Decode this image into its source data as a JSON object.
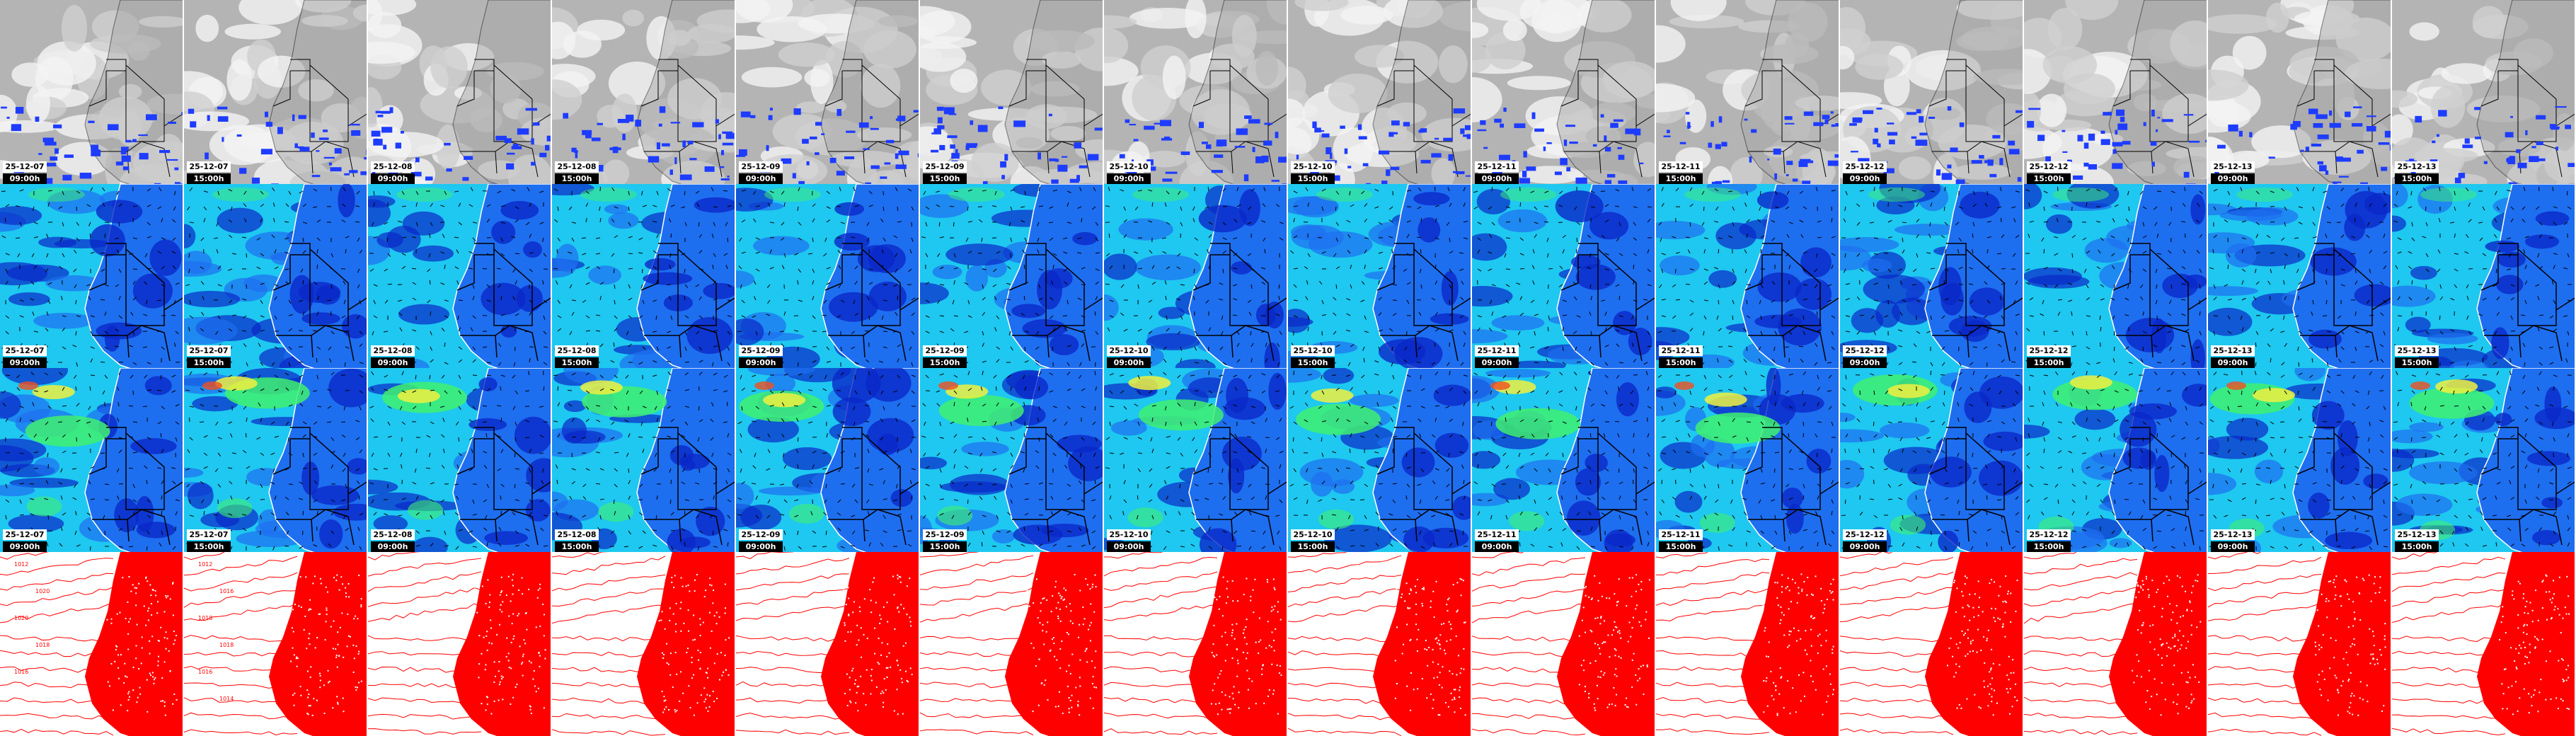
{
  "panels": [
    {
      "name": "satellite-ir-precip",
      "labels": true
    },
    {
      "name": "wind-speed-low",
      "labels": true
    },
    {
      "name": "wind-speed-high",
      "labels": true
    },
    {
      "name": "pressure-isobars",
      "labels": false
    }
  ],
  "frames": [
    {
      "date": "25-12-07",
      "time": "09:00h",
      "isobars": [
        "1012",
        "1020",
        "1020",
        "1018",
        "1016"
      ]
    },
    {
      "date": "25-12-07",
      "time": "15:00h",
      "isobars": [
        "1012",
        "1016",
        "1018",
        "1018",
        "1016",
        "1014"
      ]
    },
    {
      "date": "25-12-08",
      "time": "09:00h"
    },
    {
      "date": "25-12-08",
      "time": "15:00h"
    },
    {
      "date": "25-12-09",
      "time": "09:00h"
    },
    {
      "date": "25-12-09",
      "time": "15:00h"
    },
    {
      "date": "25-12-10",
      "time": "09:00h"
    },
    {
      "date": "25-12-10",
      "time": "15:00h"
    },
    {
      "date": "25-12-11",
      "time": "09:00h"
    },
    {
      "date": "25-12-11",
      "time": "15:00h"
    },
    {
      "date": "25-12-12",
      "time": "09:00h"
    },
    {
      "date": "25-12-12",
      "time": "15:00h"
    },
    {
      "date": "25-12-13",
      "time": "09:00h"
    },
    {
      "date": "25-12-13",
      "time": "15:00h"
    }
  ],
  "colors": {
    "wind_low": "#1ec8f0",
    "wind_mid": "#1e6ef0",
    "wind_calm": "#0a28c8",
    "wind_fast": "#40f070",
    "wind_faster": "#f0f040",
    "wind_max": "#f05020",
    "isobar": "#ff0000",
    "precip": "#1e3cff"
  }
}
